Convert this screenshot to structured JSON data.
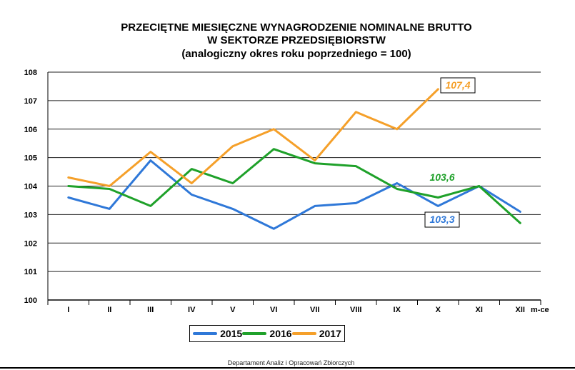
{
  "title": {
    "line1": "PRZECIĘTNE MIESIĘCZNE WYNAGRODZENIE NOMINALNE BRUTTO",
    "line2": "W SEKTORZE PRZEDSIĘBIORSTW",
    "line3": "(analogiczny okres roku poprzedniego = 100)"
  },
  "footer": "Departament Analiz i Opracowań Zbiorczych",
  "chart_data": {
    "type": "line",
    "categories": [
      "I",
      "II",
      "III",
      "IV",
      "V",
      "VI",
      "VII",
      "VIII",
      "IX",
      "X",
      "XI",
      "XII"
    ],
    "xlabel": "m-ce",
    "ylabel": "",
    "ylim": [
      100,
      108
    ],
    "yticks": [
      "100",
      "101",
      "102",
      "103",
      "104",
      "105",
      "106",
      "107",
      "108"
    ],
    "grid": true,
    "legend_position": "bottom-center",
    "series": [
      {
        "name": "2015",
        "color": "#2f78d8",
        "values": [
          103.6,
          103.2,
          104.9,
          103.7,
          103.2,
          102.5,
          103.3,
          103.4,
          104.1,
          103.3,
          104.0,
          103.1
        ]
      },
      {
        "name": "2016",
        "color": "#1fa12a",
        "values": [
          104.0,
          103.9,
          103.3,
          104.6,
          104.1,
          105.3,
          104.8,
          104.7,
          103.9,
          103.6,
          104.0,
          102.7
        ]
      },
      {
        "name": "2017",
        "color": "#f5a02a",
        "values": [
          104.3,
          104.0,
          105.2,
          104.1,
          105.4,
          106.0,
          104.9,
          106.6,
          106.0,
          107.4,
          null,
          null
        ]
      }
    ],
    "annotations": [
      {
        "text": "107,4",
        "series": "2017",
        "color": "#f5a02a",
        "boxed": true
      },
      {
        "text": "103,6",
        "series": "2016",
        "color": "#1fa12a",
        "boxed": false
      },
      {
        "text": "103,3",
        "series": "2015",
        "color": "#2f78d8",
        "boxed": true
      }
    ]
  }
}
